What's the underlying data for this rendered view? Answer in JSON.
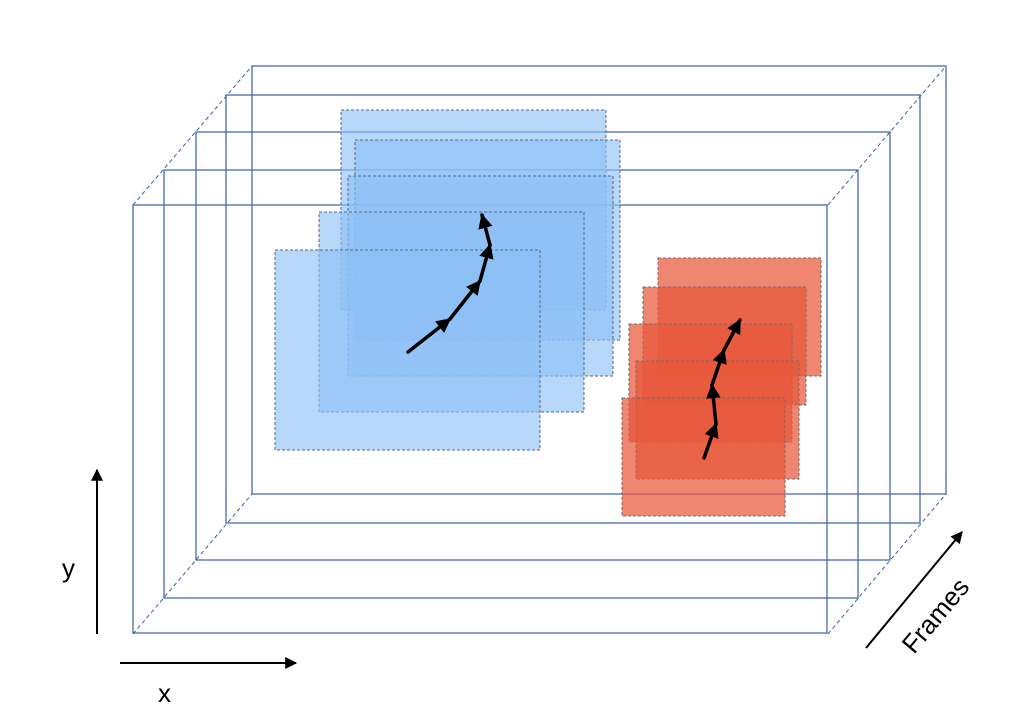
{
  "labels": {
    "y_axis": "y",
    "x_axis": "x",
    "frames_axis": "Frames"
  },
  "colors": {
    "frame_outline": "#3a5fa8",
    "blue_box_fill": "#8cc0f7",
    "blue_box_stroke": "#55668a",
    "red_box_fill": "#e8583a",
    "red_box_stroke": "#7a6a66",
    "arrow": "#000000"
  },
  "frames": {
    "count": 5
  },
  "objects": [
    {
      "name": "blue-object",
      "color": "blue",
      "boxes": 5
    },
    {
      "name": "red-object",
      "color": "red",
      "boxes": 5
    }
  ]
}
